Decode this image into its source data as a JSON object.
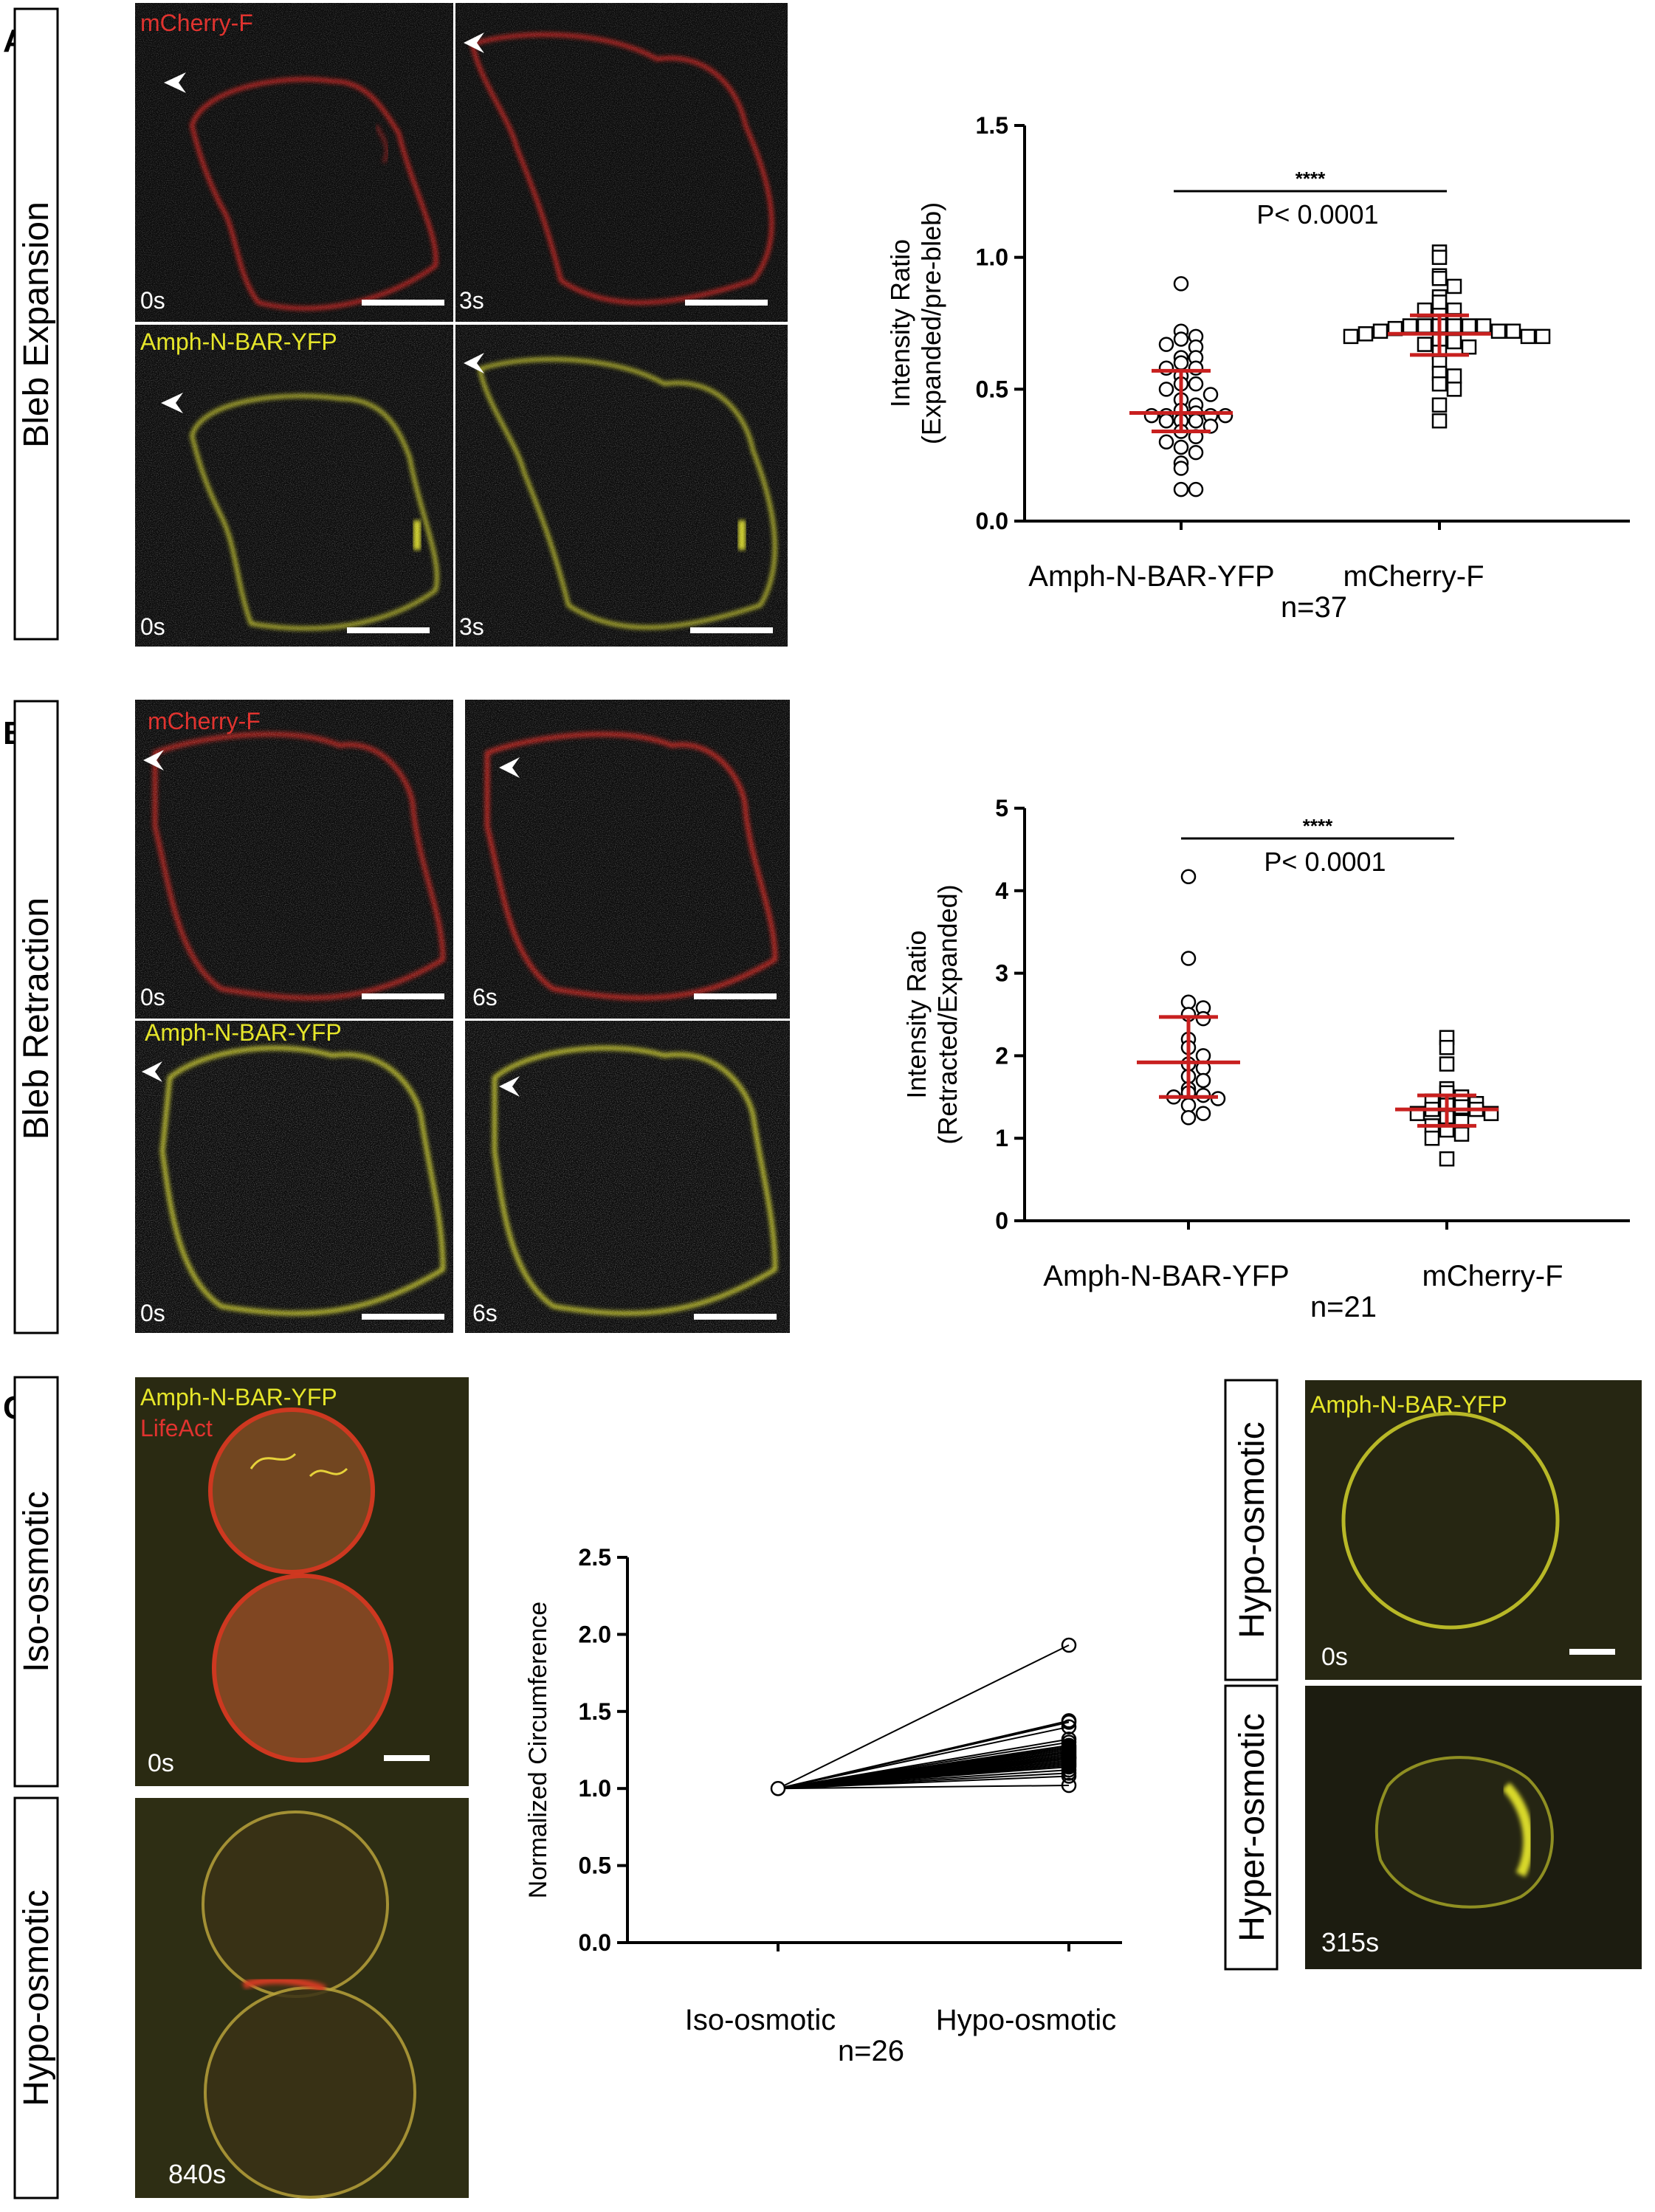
{
  "panels": {
    "A": {
      "letter": "A",
      "row_label": "Bleb Expansion",
      "tiles": [
        {
          "channel": "mCherry-F",
          "time": "0s"
        },
        {
          "channel": "",
          "time": "3s"
        },
        {
          "channel": "Amph-N-BAR-YFP",
          "time": "0s"
        },
        {
          "channel": "",
          "time": "3s"
        }
      ]
    },
    "B": {
      "letter": "B",
      "row_label": "Bleb Retraction",
      "tiles": [
        {
          "channel": "mCherry-F",
          "time": "0s"
        },
        {
          "channel": "",
          "time": "6s"
        },
        {
          "channel": "Amph-N-BAR-YFP",
          "time": "0s"
        },
        {
          "channel": "",
          "time": "6s"
        }
      ]
    },
    "C": {
      "letter": "C",
      "left_tiles": [
        {
          "row_label": "Iso-osmotic",
          "channel1": "Amph-N-BAR-YFP",
          "channel2": "LifeAct",
          "time": "0s"
        },
        {
          "row_label": "Hypo-osmotic",
          "time": "840s"
        }
      ],
      "right_tiles": [
        {
          "row_label": "Hypo-osmotic",
          "channel": "Amph-N-BAR-YFP",
          "time": "0s"
        },
        {
          "row_label": "Hyper-osmotic",
          "time": "315s"
        }
      ]
    }
  },
  "colors": {
    "red_channel": "#e0332f",
    "yellow_channel": "#e6e62a",
    "error_bar": "#c8201f",
    "membrane_red": "#d9231f",
    "membrane_yellow": "#d8d82a"
  },
  "chart_data": [
    {
      "type": "scatter",
      "panel": "A",
      "ylabel": "Intensity Ratio\n(Expanded/pre-bleb)",
      "ylabel_lines": [
        "Intensity Ratio",
        "(Expanded/pre-bleb)"
      ],
      "categories": [
        "Amph-N-BAR-YFP",
        "mCherry-F"
      ],
      "n_label": "n=37",
      "ylim": [
        0,
        1.5
      ],
      "yticks": [
        "0.0",
        "0.5",
        "1.0",
        "1.5"
      ],
      "significance": "****",
      "pvalue": "P< 0.0001",
      "series": [
        {
          "name": "Amph-N-BAR-YFP",
          "marker": "circle",
          "median": 0.41,
          "q1": 0.34,
          "q3": 0.57,
          "values": [
            0.9,
            0.72,
            0.7,
            0.69,
            0.66,
            0.67,
            0.62,
            0.62,
            0.6,
            0.58,
            0.58,
            0.55,
            0.52,
            0.52,
            0.5,
            0.48,
            0.46,
            0.44,
            0.42,
            0.41,
            0.4,
            0.4,
            0.4,
            0.4,
            0.38,
            0.38,
            0.38,
            0.36,
            0.34,
            0.32,
            0.3,
            0.28,
            0.26,
            0.22,
            0.2,
            0.12,
            0.12
          ]
        },
        {
          "name": "mCherry-F",
          "marker": "square",
          "median": 0.71,
          "q1": 0.63,
          "q3": 0.78,
          "values": [
            1.02,
            1.0,
            0.93,
            0.92,
            0.89,
            0.85,
            0.83,
            0.8,
            0.8,
            0.78,
            0.76,
            0.74,
            0.74,
            0.74,
            0.74,
            0.74,
            0.74,
            0.73,
            0.72,
            0.72,
            0.72,
            0.71,
            0.7,
            0.7,
            0.7,
            0.69,
            0.68,
            0.67,
            0.66,
            0.64,
            0.6,
            0.56,
            0.55,
            0.52,
            0.5,
            0.44,
            0.38
          ]
        }
      ]
    },
    {
      "type": "scatter",
      "panel": "B",
      "ylabel": "Intensity Ratio\n(Retracted/Expanded)",
      "ylabel_lines": [
        "Intensity Ratio",
        "(Retracted/Expanded)"
      ],
      "categories": [
        "Amph-N-BAR-YFP",
        "mCherry-F"
      ],
      "n_label": "n=21",
      "ylim": [
        0,
        5
      ],
      "yticks": [
        "0",
        "1",
        "2",
        "3",
        "4",
        "5"
      ],
      "significance": "****",
      "pvalue": "P< 0.0001",
      "series": [
        {
          "name": "Amph-N-BAR-YFP",
          "marker": "circle",
          "median": 1.92,
          "q1": 1.5,
          "q3": 2.47,
          "values": [
            4.17,
            3.18,
            2.65,
            2.58,
            2.5,
            2.45,
            2.2,
            2.1,
            2.0,
            1.9,
            1.85,
            1.75,
            1.7,
            1.6,
            1.55,
            1.52,
            1.5,
            1.48,
            1.4,
            1.3,
            1.25
          ]
        },
        {
          "name": "mCherry-F",
          "marker": "square",
          "median": 1.35,
          "q1": 1.15,
          "q3": 1.52,
          "values": [
            2.22,
            2.1,
            1.9,
            1.6,
            1.55,
            1.5,
            1.45,
            1.42,
            1.4,
            1.38,
            1.35,
            1.35,
            1.3,
            1.3,
            1.25,
            1.2,
            1.15,
            1.1,
            1.05,
            1.0,
            0.75
          ]
        }
      ]
    },
    {
      "type": "line",
      "panel": "C",
      "ylabel": "Normalized Circumference",
      "categories": [
        "Iso-osmotic",
        "Hypo-osmotic"
      ],
      "n_label": "n=26",
      "ylim": [
        0,
        2.5
      ],
      "yticks": [
        "0.0",
        "0.5",
        "1.0",
        "1.5",
        "2.0",
        "2.5"
      ],
      "start_value": 1.0,
      "end_values": [
        1.93,
        1.44,
        1.43,
        1.4,
        1.32,
        1.3,
        1.28,
        1.27,
        1.26,
        1.25,
        1.24,
        1.23,
        1.22,
        1.21,
        1.2,
        1.2,
        1.19,
        1.18,
        1.17,
        1.16,
        1.15,
        1.14,
        1.12,
        1.1,
        1.08,
        1.02
      ]
    }
  ]
}
